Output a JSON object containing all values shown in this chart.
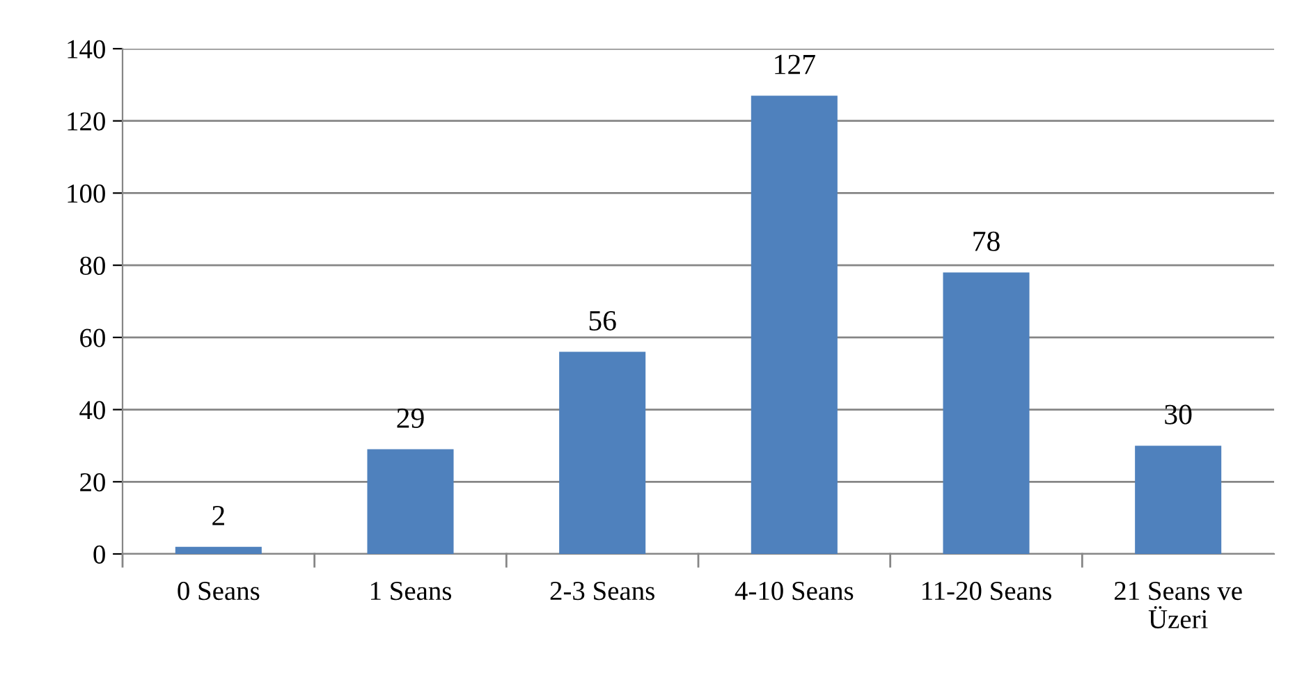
{
  "chart_data": {
    "type": "bar",
    "categories": [
      "0 Seans",
      "1 Seans",
      "2-3 Seans",
      "4-10 Seans",
      "11-20 Seans",
      "21 Seans ve\nÜzeri"
    ],
    "values": [
      2,
      29,
      56,
      127,
      78,
      30
    ],
    "color": "#4f81bd",
    "ylim": [
      0,
      140
    ],
    "yticks": [
      0,
      20,
      40,
      60,
      80,
      100,
      120,
      140
    ],
    "grid": "y",
    "data_labels": true
  }
}
